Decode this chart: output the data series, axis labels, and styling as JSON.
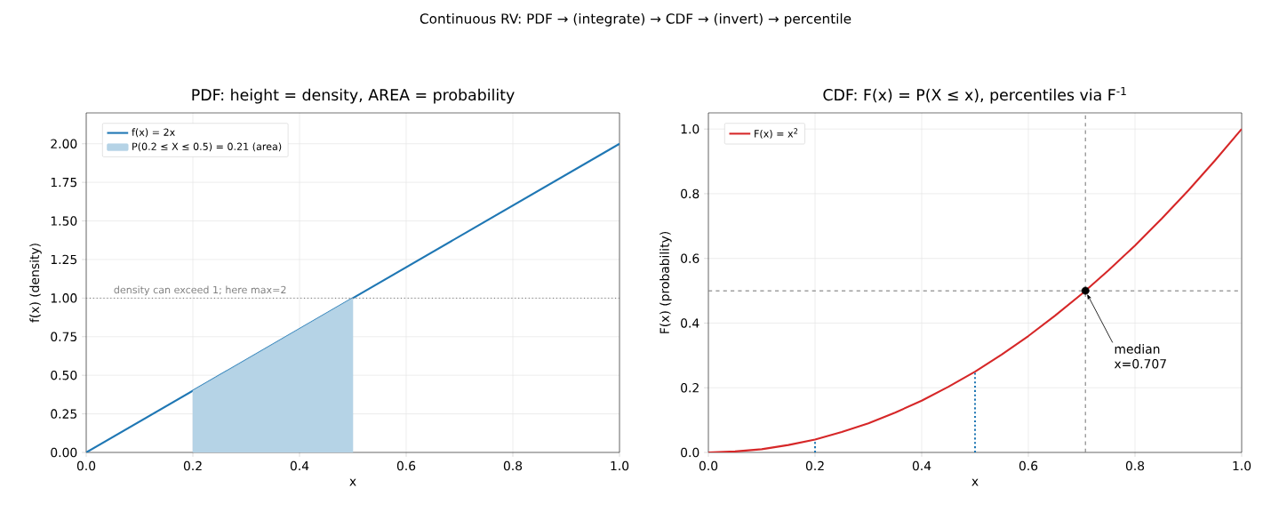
{
  "chart_data": [
    {
      "type": "line",
      "title": "PDF: height = density, AREA = probability",
      "xlabel": "x",
      "ylabel": "f(x)  (density)",
      "annotations": [
        "Continuous RV: PDF → (integrate) → CDF → (invert) → percentile"
      ],
      "xlim": [
        0,
        1
      ],
      "ylim": [
        0,
        2.2
      ],
      "xticks": [
        {
          "value": 0,
          "label": "0.0"
        },
        {
          "value": 0.2,
          "label": "0.2"
        },
        {
          "value": 0.4,
          "label": "0.4"
        },
        {
          "value": 0.6,
          "label": "0.6"
        },
        {
          "value": 0.8,
          "label": "0.8"
        },
        {
          "value": 1,
          "label": "1.0"
        }
      ],
      "yticks": [
        {
          "value": 0,
          "label": "0.00"
        },
        0.25,
        {
          "value": 0.5,
          "label": "0.50"
        },
        0.75,
        {
          "value": 1,
          "label": "1.00"
        },
        1.25,
        {
          "value": 1.5,
          "label": "1.50"
        },
        1.75,
        {
          "value": 2,
          "label": "2.00"
        }
      ],
      "grid": true,
      "legend": "top left",
      "series": [
        {
          "name": "f(x) = 2x",
          "color": "#1f77b4",
          "x": [
            0,
            1
          ],
          "values": [
            0,
            2
          ]
        },
        {
          "type": "area",
          "name": "P(0.2 ≤ X ≤ 0.5) = 0.21 (area)",
          "color": "#b5d3e6",
          "x": [
            0.2,
            0.5
          ],
          "values": [
            0.4,
            1.0
          ]
        }
      ],
      "ref_lines": [
        {
          "axis": "y",
          "value": 1,
          "label": "density can exceed 1; here max=2",
          "color": "#808080",
          "line_style": "dotted"
        }
      ]
    },
    {
      "type": "line",
      "title": "CDF: F(x) = P(X ≤ x), percentiles via F$^{-1}$",
      "xlabel": "x",
      "ylabel": "F(x)  (probability)",
      "annotations": [
        {
          "text": "median x=0.707",
          "x": 0.707,
          "y": 0.5
        }
      ],
      "xlim": [
        0,
        1
      ],
      "ylim": [
        0,
        1.05
      ],
      "xticks": [
        {
          "value": 0,
          "label": "0.0"
        },
        {
          "value": 0.2,
          "label": "0.2"
        },
        {
          "value": 0.4,
          "label": "0.4"
        },
        {
          "value": 0.6,
          "label": "0.6"
        },
        {
          "value": 0.8,
          "label": "0.8"
        },
        {
          "value": 1,
          "label": "1.0"
        }
      ],
      "yticks": [
        {
          "value": 0,
          "label": "0.0"
        },
        0.2,
        0.4,
        0.6,
        0.8,
        {
          "value": 1,
          "label": "1.0"
        }
      ],
      "grid": true,
      "legend": "top left",
      "series": [
        {
          "name": "F(x) = x$^{2}$",
          "color": "#d62728",
          "x": [
            0,
            0.05,
            0.1,
            0.15,
            0.2,
            0.25,
            0.3,
            0.35,
            0.4,
            0.45,
            0.5,
            0.55,
            0.6,
            0.65,
            0.7,
            0.75,
            0.8,
            0.85,
            0.9,
            0.95,
            1
          ],
          "values": [
            0,
            0.003,
            0.01,
            0.023,
            0.04,
            0.063,
            0.09,
            0.123,
            0.16,
            0.203,
            0.25,
            0.303,
            0.36,
            0.423,
            0.49,
            0.563,
            0.64,
            0.723,
            0.81,
            0.903,
            1
          ]
        },
        {
          "color": "#1f77b4",
          "line_style": "dotted",
          "x": [
            0.2,
            0.2
          ],
          "values": [
            0,
            0.04
          ]
        },
        {
          "color": "#1f77b4",
          "line_style": "dotted",
          "x": [
            0.5,
            0.5
          ],
          "values": [
            0,
            0.25
          ]
        },
        {
          "type": "scatter",
          "color": "#000000",
          "marker": "circle",
          "x": [
            0.707
          ],
          "values": [
            0.5
          ]
        }
      ],
      "ref_lines": [
        {
          "axis": "x",
          "value": 0.707,
          "color": "#808080",
          "line_style": "dashed"
        },
        {
          "axis": "y",
          "value": 0.5,
          "color": "#808080",
          "line_style": "dashed"
        }
      ]
    }
  ]
}
